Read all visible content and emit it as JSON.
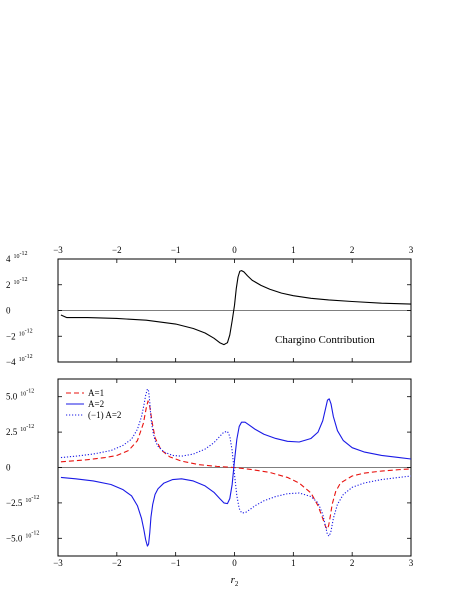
{
  "chart_data": [
    {
      "type": "line",
      "panel": "top",
      "xlim": [
        -3,
        3
      ],
      "ylim": [
        -4e-12,
        4e-12
      ],
      "x_ticks": [
        "-3",
        "-2",
        "-1",
        "0",
        "1",
        "2",
        "3"
      ],
      "y_ticks": [
        {
          "mant": "4",
          "exp": "-12",
          "value": 4e-12
        },
        {
          "mant": "2",
          "exp": "-12",
          "value": 2e-12
        },
        {
          "mant": "0",
          "exp": "",
          "value": 0
        },
        {
          "mant": "−2",
          "exp": "-12",
          "value": -2e-12
        },
        {
          "mant": "−4",
          "exp": "-12",
          "value": -4e-12
        }
      ],
      "tick_label_position": "top",
      "annotation": "Chargino Contribution",
      "zero_line": true,
      "series": [
        {
          "color": "#000000",
          "dash": "solid",
          "x": [
            -2.95,
            -2.85,
            -2.5,
            -2.0,
            -1.5,
            -1.0,
            -0.7,
            -0.5,
            -0.35,
            -0.25,
            -0.18,
            -0.12,
            -0.08,
            -0.04,
            0.0,
            0.03,
            0.06,
            0.09,
            0.12,
            0.16,
            0.22,
            0.3,
            0.45,
            0.6,
            0.8,
            1.0,
            1.3,
            1.6,
            2.0,
            2.5,
            3.0
          ],
          "y": [
            -3.5e-13,
            -5.5e-13,
            -5.5e-13,
            -6.2e-13,
            -7.5e-13,
            -1.05e-12,
            -1.4e-12,
            -1.75e-12,
            -2.15e-12,
            -2.5e-12,
            -2.65e-12,
            -2.5e-12,
            -1.9e-12,
            -8e-13,
            4e-13,
            1.7e-12,
            2.6e-12,
            3.05e-12,
            3.1e-12,
            3e-12,
            2.7e-12,
            2.35e-12,
            1.95e-12,
            1.65e-12,
            1.35e-12,
            1.15e-12,
            9.5e-13,
            8.2e-13,
            7e-13,
            5.7e-13,
            5e-13
          ]
        }
      ]
    },
    {
      "type": "line",
      "panel": "bottom",
      "xlim": [
        -3,
        3
      ],
      "ylim": [
        -6.25e-12,
        6.25e-12
      ],
      "x_ticks": [
        "-3",
        "-2",
        "-1",
        "0",
        "1",
        "2",
        "3"
      ],
      "xlabel": {
        "main": "r",
        "sub": "2"
      },
      "y_ticks": [
        {
          "mant": "5.0",
          "exp": "-12",
          "value": 5e-12
        },
        {
          "mant": "2.5",
          "exp": "-12",
          "value": 2.5e-12
        },
        {
          "mant": "0",
          "exp": "",
          "value": 0
        },
        {
          "mant": "−2.5",
          "exp": "-12",
          "value": -2.5e-12
        },
        {
          "mant": "−5.0",
          "exp": "-12",
          "value": -5e-12
        }
      ],
      "legend_position": "top-left",
      "zero_line": true,
      "series": [
        {
          "name": "A=1",
          "color": "#e8130f",
          "dash": "dashed",
          "x": [
            -2.95,
            -2.5,
            -2.2,
            -2.0,
            -1.8,
            -1.65,
            -1.55,
            -1.5,
            -1.47,
            -1.44,
            -1.4,
            -1.35,
            -1.25,
            -1.1,
            -0.9,
            -0.6,
            -0.3,
            0.0,
            0.3,
            0.6,
            0.9,
            1.1,
            1.3,
            1.42,
            1.5,
            1.55,
            1.58,
            1.6,
            1.63,
            1.66,
            1.72,
            1.8,
            2.0,
            2.2,
            2.5,
            2.8,
            3.0
          ],
          "y": [
            4e-13,
            5.5e-13,
            7e-13,
            8.5e-13,
            1.2e-12,
            1.9e-12,
            3.1e-12,
            4.2e-12,
            4.7e-12,
            4.3e-12,
            3.2e-12,
            2.1e-12,
            1.25e-12,
            7.5e-13,
            4.5e-13,
            2e-13,
            8e-14,
            0.0,
            -1.5e-13,
            -3.5e-13,
            -7e-13,
            -1.1e-12,
            -1.8e-12,
            -2.7e-12,
            -3.6e-12,
            -4.2e-12,
            -4.35e-12,
            -4.1e-12,
            -3.4e-12,
            -2.6e-12,
            -1.7e-12,
            -1.1e-12,
            -6e-13,
            -4e-13,
            -2.5e-13,
            -1.5e-13,
            -1e-13
          ]
        },
        {
          "name": "A=2",
          "color": "#1a1ae6",
          "dash": "solid",
          "x": [
            -2.95,
            -2.7,
            -2.4,
            -2.1,
            -1.9,
            -1.75,
            -1.65,
            -1.58,
            -1.54,
            -1.51,
            -1.48,
            -1.46,
            -1.44,
            -1.42,
            -1.39,
            -1.35,
            -1.3,
            -1.2,
            -1.05,
            -0.9,
            -0.7,
            -0.5,
            -0.35,
            -0.25,
            -0.18,
            -0.12,
            -0.08,
            -0.04,
            0.0,
            0.04,
            0.08,
            0.12,
            0.18,
            0.25,
            0.35,
            0.5,
            0.7,
            0.9,
            1.1,
            1.3,
            1.42,
            1.5,
            1.55,
            1.58,
            1.61,
            1.64,
            1.68,
            1.75,
            1.85,
            2.0,
            2.2,
            2.5,
            2.8,
            3.0
          ],
          "y": [
            -7e-13,
            -8e-13,
            -9.5e-13,
            -1.2e-12,
            -1.55e-12,
            -2e-12,
            -2.7e-12,
            -3.6e-12,
            -4.4e-12,
            -5.1e-12,
            -5.55e-12,
            -5.4e-12,
            -4.6e-12,
            -3.5e-12,
            -2.6e-12,
            -1.9e-12,
            -1.5e-12,
            -1.1e-12,
            -8.5e-13,
            -8e-13,
            -9.5e-13,
            -1.3e-12,
            -1.75e-12,
            -2.2e-12,
            -2.5e-12,
            -2.55e-12,
            -2.2e-12,
            -1.2e-12,
            5e-13,
            2e-12,
            2.9e-12,
            3.2e-12,
            3.2e-12,
            3e-12,
            2.7e-12,
            2.35e-12,
            2.05e-12,
            1.85e-12,
            1.8e-12,
            2.05e-12,
            2.5e-12,
            3.3e-12,
            4.2e-12,
            4.75e-12,
            4.85e-12,
            4.5e-12,
            3.6e-12,
            2.6e-12,
            1.9e-12,
            1.4e-12,
            1.1e-12,
            8.5e-13,
            7e-13,
            6e-13
          ]
        },
        {
          "name": "(−1) A=2",
          "color": "#1a1ae6",
          "dash": "dotted",
          "x": [
            -2.95,
            -2.7,
            -2.4,
            -2.1,
            -1.9,
            -1.75,
            -1.65,
            -1.58,
            -1.54,
            -1.51,
            -1.48,
            -1.46,
            -1.44,
            -1.42,
            -1.39,
            -1.35,
            -1.3,
            -1.2,
            -1.05,
            -0.9,
            -0.7,
            -0.5,
            -0.35,
            -0.25,
            -0.18,
            -0.12,
            -0.08,
            -0.04,
            0.0,
            0.04,
            0.08,
            0.12,
            0.18,
            0.25,
            0.35,
            0.5,
            0.7,
            0.9,
            1.1,
            1.3,
            1.42,
            1.5,
            1.55,
            1.58,
            1.61,
            1.64,
            1.68,
            1.75,
            1.85,
            2.0,
            2.2,
            2.5,
            2.8,
            3.0
          ],
          "y": [
            7e-13,
            8e-13,
            9.5e-13,
            1.2e-12,
            1.55e-12,
            2e-12,
            2.7e-12,
            3.6e-12,
            4.4e-12,
            5.1e-12,
            5.55e-12,
            5.4e-12,
            4.6e-12,
            3.5e-12,
            2.6e-12,
            1.9e-12,
            1.5e-12,
            1.1e-12,
            8.5e-13,
            8e-13,
            9.5e-13,
            1.3e-12,
            1.75e-12,
            2.2e-12,
            2.5e-12,
            2.55e-12,
            2.2e-12,
            1.2e-12,
            -5e-13,
            -2e-12,
            -2.9e-12,
            -3.2e-12,
            -3.2e-12,
            -3e-12,
            -2.7e-12,
            -2.35e-12,
            -2.05e-12,
            -1.85e-12,
            -1.8e-12,
            -2.05e-12,
            -2.5e-12,
            -3.3e-12,
            -4.2e-12,
            -4.75e-12,
            -4.85e-12,
            -4.5e-12,
            -3.6e-12,
            -2.6e-12,
            -1.9e-12,
            -1.4e-12,
            -1.1e-12,
            -8.5e-13,
            -7e-13,
            -6e-13
          ]
        }
      ]
    }
  ]
}
